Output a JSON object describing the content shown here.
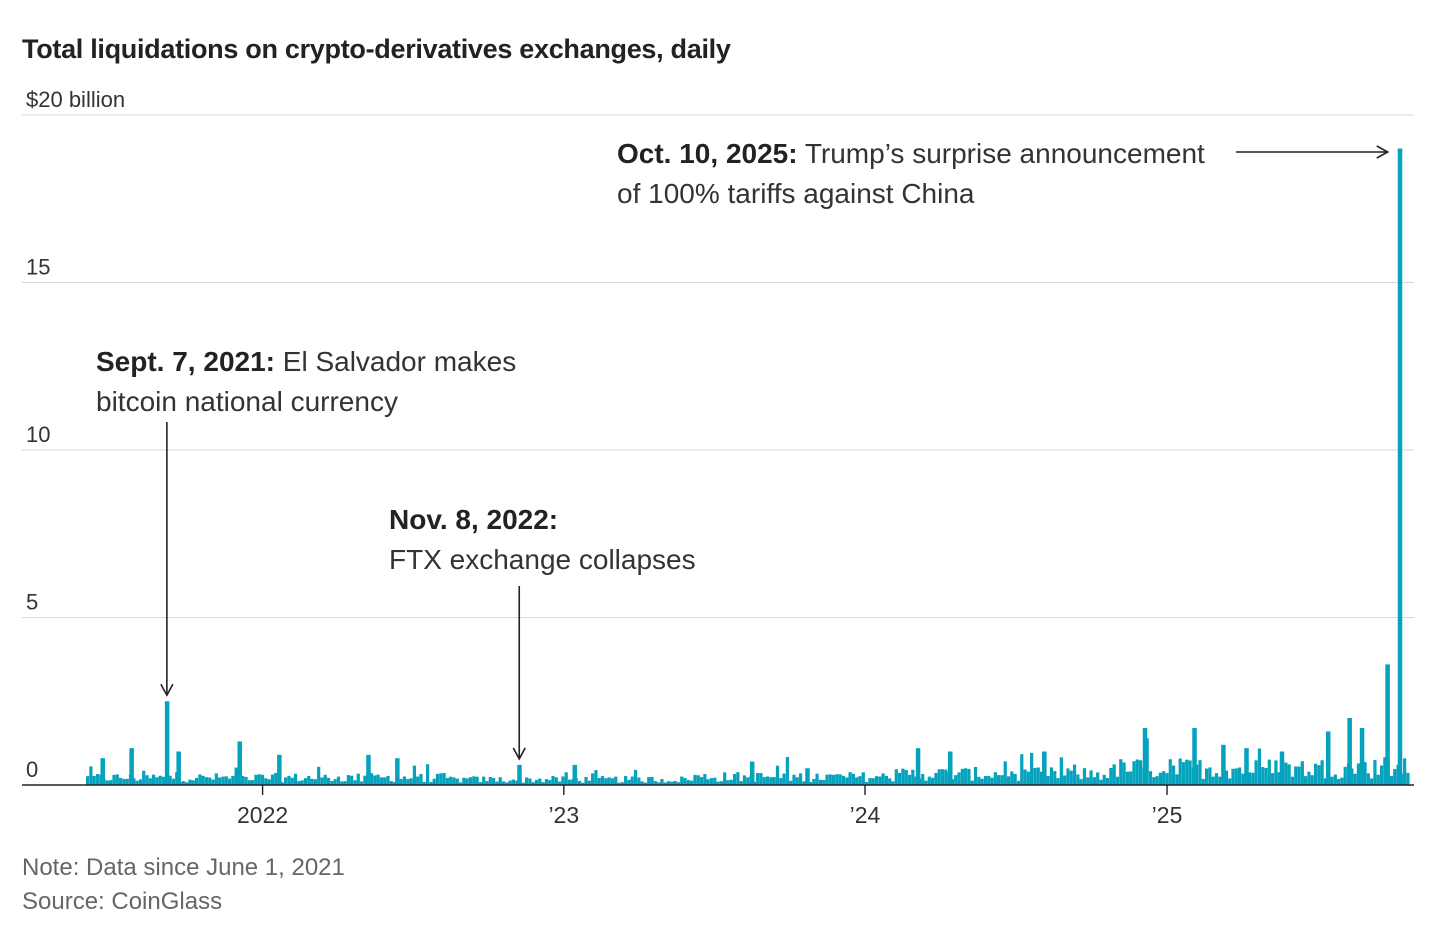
{
  "chart_data": {
    "type": "bar",
    "title": "Total liquidations on crypto-derivatives exchanges, daily",
    "ylabel": "$20 billion",
    "ylim": [
      0,
      20
    ],
    "y_ticks": [
      {
        "value": 0,
        "label": "0"
      },
      {
        "value": 5,
        "label": "5"
      },
      {
        "value": 10,
        "label": "10"
      },
      {
        "value": 15,
        "label": "15"
      },
      {
        "value": 20,
        "label": "$20 billion"
      }
    ],
    "x_ticks": [
      {
        "date": "2022-01-01",
        "label": "2022"
      },
      {
        "date": "2023-01-01",
        "label": "’23"
      },
      {
        "date": "2024-01-01",
        "label": "’24"
      },
      {
        "date": "2025-01-01",
        "label": "’25"
      }
    ],
    "x_range": [
      "2021-06-01",
      "2025-10-20"
    ],
    "baseline_level": 0.2,
    "highlights": [
      {
        "date": "2021-09-07",
        "value": 2.5
      },
      {
        "date": "2022-11-08",
        "value": 0.6
      },
      {
        "date": "2025-10-10",
        "value": 19.0
      },
      {
        "date": "2025-09-25",
        "value": 3.6
      },
      {
        "date": "2025-08-10",
        "value": 2.0
      },
      {
        "date": "2025-07-15",
        "value": 1.6
      },
      {
        "date": "2025-08-25",
        "value": 1.7
      },
      {
        "date": "2024-12-05",
        "value": 1.7
      },
      {
        "date": "2025-02-03",
        "value": 1.7
      },
      {
        "date": "2025-03-10",
        "value": 1.2
      },
      {
        "date": "2025-04-07",
        "value": 1.1
      },
      {
        "date": "2025-05-20",
        "value": 1.0
      },
      {
        "date": "2024-08-05",
        "value": 1.0
      },
      {
        "date": "2024-03-05",
        "value": 1.1
      },
      {
        "date": "2024-04-13",
        "value": 1.0
      },
      {
        "date": "2021-06-21",
        "value": 0.8
      },
      {
        "date": "2021-07-26",
        "value": 1.1
      },
      {
        "date": "2021-09-21",
        "value": 1.0
      },
      {
        "date": "2021-12-04",
        "value": 1.3
      },
      {
        "date": "2022-01-21",
        "value": 0.9
      },
      {
        "date": "2022-05-09",
        "value": 0.9
      },
      {
        "date": "2022-06-13",
        "value": 0.8
      },
      {
        "date": "2023-01-14",
        "value": 0.6
      },
      {
        "date": "2023-08-17",
        "value": 0.7
      },
      {
        "date": "2023-10-23",
        "value": 0.5
      }
    ],
    "annotations": [
      {
        "bold": "Oct. 10, 2025:",
        "text": "Trump’s surprise announcement",
        "text2": "of 100% tariffs against China"
      },
      {
        "bold": "Sept. 7, 2021:",
        "text": "El Salvador makes",
        "text2": "bitcoin national currency"
      },
      {
        "bold": "Nov. 8, 2022:",
        "text": "",
        "text2": "FTX exchange collapses"
      }
    ],
    "note": "Note: Data since June 1, 2021",
    "source": "Source: CoinGlass"
  }
}
